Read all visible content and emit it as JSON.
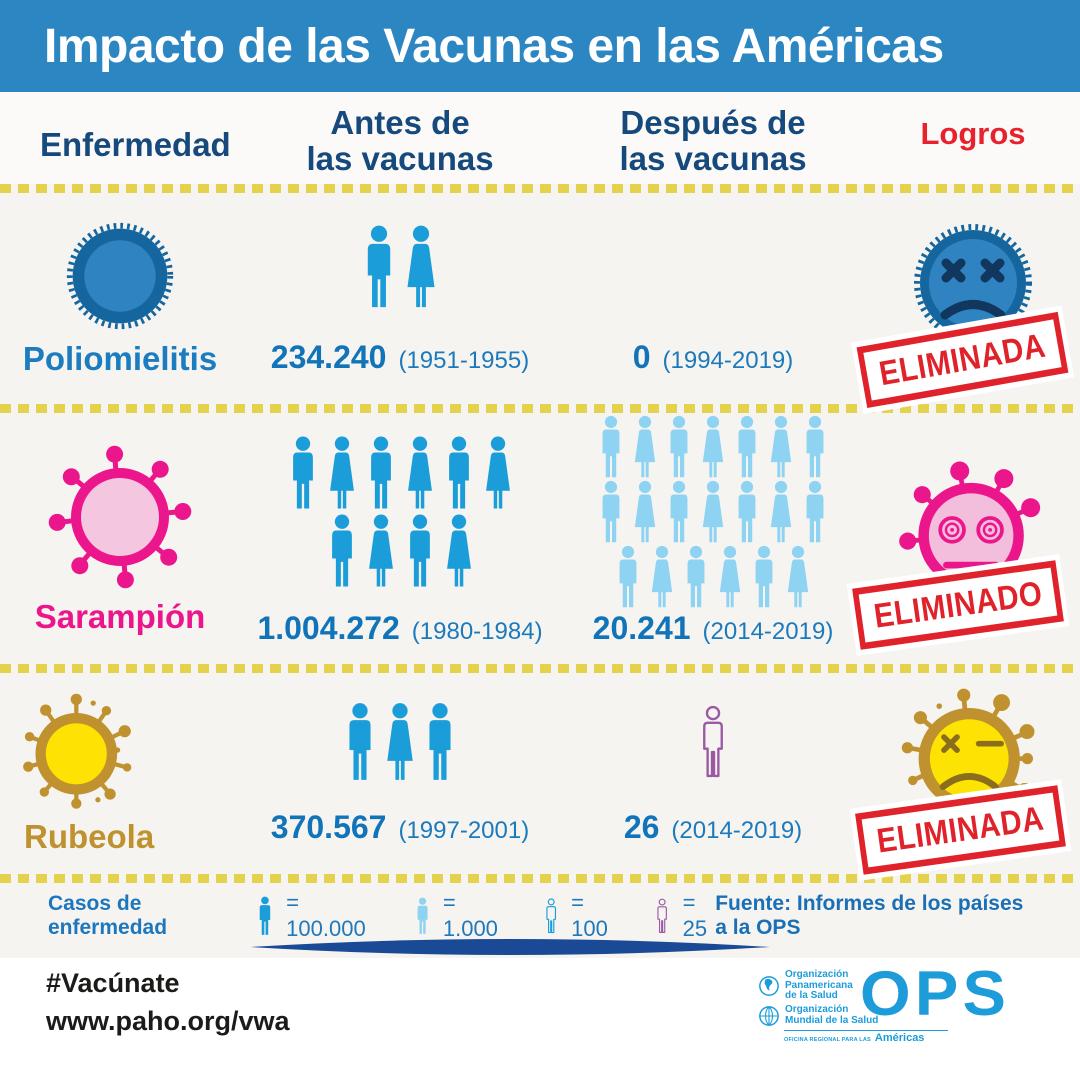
{
  "banner": {
    "title": "Impacto de las Vacunas en las Américas"
  },
  "table": {
    "headers": {
      "disease": "Enfermedad",
      "before_line1": "Antes de",
      "before_line2": "las vacunas",
      "after_line1": "Después de",
      "after_line2": "las vacunas",
      "achievements": "Logros"
    },
    "rows": [
      {
        "name": "Poliomielitis",
        "before": {
          "value": "234.240",
          "period": "(1951-1955)",
          "pictogram": [
            [
              "man",
              "woman"
            ]
          ]
        },
        "after": {
          "value": "0",
          "period": "(1994-2019)",
          "pictogram": []
        },
        "stamp": "ELIMINADA"
      },
      {
        "name": "Sarampión",
        "before": {
          "value": "1.004.272",
          "period": "(1980-1984)",
          "pictogram": [
            [
              "man",
              "woman",
              "man",
              "woman",
              "man",
              "woman"
            ],
            [
              "man",
              "woman",
              "man",
              "woman"
            ]
          ]
        },
        "after": {
          "value": "20.241",
          "period": "(2014-2019)",
          "pictogram": [
            [
              "man",
              "woman",
              "man",
              "woman",
              "man",
              "woman",
              "man"
            ],
            [
              "man",
              "woman",
              "man",
              "woman",
              "man",
              "woman",
              "man"
            ],
            [
              "man",
              "woman",
              "man",
              "woman",
              "man",
              "woman"
            ]
          ]
        },
        "stamp": "ELIMINADO"
      },
      {
        "name": "Rubeola",
        "before": {
          "value": "370.567",
          "period": "(1997-2001)",
          "pictogram": [
            [
              "man",
              "woman",
              "man"
            ]
          ]
        },
        "after": {
          "value": "26",
          "period": "(2014-2019)",
          "pictogram": [
            [
              "man_outline"
            ]
          ]
        },
        "stamp": "ELIMINADA"
      }
    ]
  },
  "legend": {
    "label": "Casos de enfermedad",
    "items": [
      {
        "icon": "person-solid-blue-icon",
        "text": "= 100.000"
      },
      {
        "icon": "person-light-blue-icon",
        "text": "= 1.000"
      },
      {
        "icon": "person-outline-blue-icon",
        "text": "= 100"
      },
      {
        "icon": "person-outline-purple-icon",
        "text": "= 25"
      }
    ],
    "source": "Fuente: Informes de los países a la OPS"
  },
  "footer": {
    "hashtag": "#Vacúnate",
    "url": "www.paho.org/vwa",
    "logo": {
      "org1a": "Organización",
      "org1b": "Panamericana",
      "org1c": "de la Salud",
      "org2a": "Organización",
      "org2b": "Mundial de la Salud",
      "region_small": "OFICINA REGIONAL PARA LAS",
      "region": "Américas",
      "ops": "OPS"
    }
  },
  "colors": {
    "banner_blue": "#2b86c2",
    "header_navy": "#16497c",
    "logros_red": "#e8222d",
    "stamp_red": "#e0222b",
    "person_blue": "#1b9dd9",
    "person_light_blue": "#8fd3f3",
    "person_purple": "#9b59a3",
    "number_blue": "#1173b8",
    "polio_dark_blue": "#15669f",
    "polio_mid_blue": "#2e83c0",
    "measles_pink": "#ec168c",
    "measles_light_pink": "#f5c6e0",
    "rubella_yellow": "#fce303",
    "rubella_gold": "#c0912f",
    "dotted_yellow": "#e5d24c",
    "swoosh_navy": "#1a4a96",
    "ops_blue": "#1e9cd9"
  },
  "chart_data": {
    "type": "table",
    "title": "Impacto de las Vacunas en las Américas",
    "columns": [
      "Enfermedad",
      "Antes de las vacunas",
      "Después de las vacunas",
      "Logros"
    ],
    "rows": [
      {
        "enfermedad": "Poliomielitis",
        "antes_casos": 234240,
        "antes_periodo": "1951-1955",
        "despues_casos": 0,
        "despues_periodo": "1994-2019",
        "logro": "ELIMINADA"
      },
      {
        "enfermedad": "Sarampión",
        "antes_casos": 1004272,
        "antes_periodo": "1980-1984",
        "despues_casos": 20241,
        "despues_periodo": "2014-2019",
        "logro": "ELIMINADO"
      },
      {
        "enfermedad": "Rubeola",
        "antes_casos": 370567,
        "antes_periodo": "1997-2001",
        "despues_casos": 26,
        "despues_periodo": "2014-2019",
        "logro": "ELIMINADA"
      }
    ],
    "pictogram_scale": [
      {
        "icon": "persona azul sólido",
        "value": 100000
      },
      {
        "icon": "persona azul claro",
        "value": 1000
      },
      {
        "icon": "persona contorno azul",
        "value": 100
      },
      {
        "icon": "persona contorno morado",
        "value": 25
      }
    ],
    "source": "Fuente: Informes de los países a la OPS",
    "legend_position": "bottom"
  }
}
